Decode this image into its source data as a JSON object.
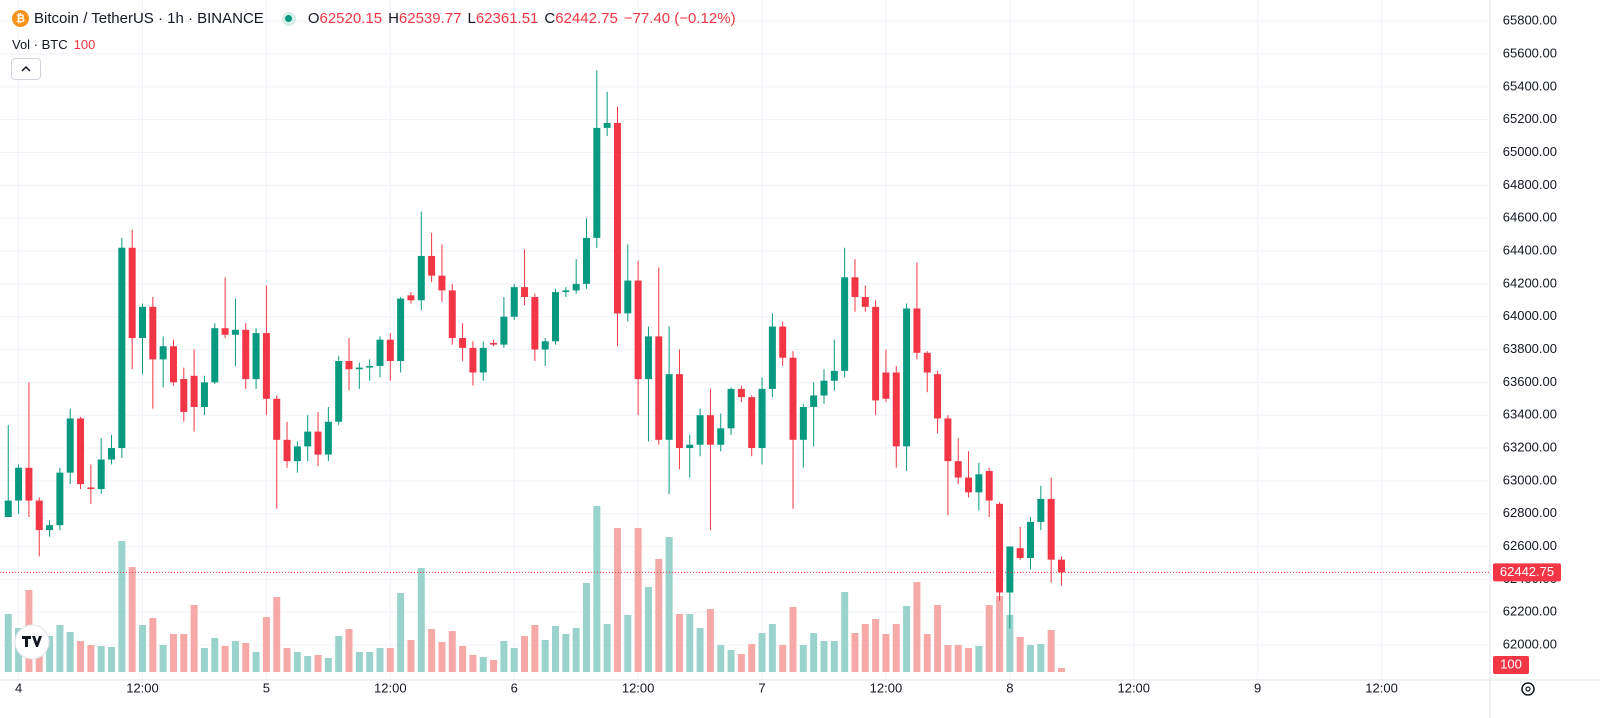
{
  "chart_data": {
    "type": "candlestick",
    "title": "Bitcoin / TetherUS · 1h · BINANCE",
    "ohlc_labels": [
      "O",
      "H",
      "L",
      "C"
    ],
    "change_text": "−77.40 (−0.12%)",
    "volume_title": "Vol · BTC",
    "up_color": "#089981",
    "down_color": "#f23645",
    "up_volume_color": "#9ad3cc",
    "down_volume_color": "#f7a9a8",
    "grid": true,
    "xlim": [
      -0.8,
      143.5
    ],
    "xticks": [
      {
        "value": 1,
        "label": "4"
      },
      {
        "value": 13,
        "label": "12:00"
      },
      {
        "value": 25,
        "label": "5"
      },
      {
        "value": 37,
        "label": "12:00"
      },
      {
        "value": 49,
        "label": "6"
      },
      {
        "value": 61,
        "label": "12:00"
      },
      {
        "value": 73,
        "label": "7"
      },
      {
        "value": 85,
        "label": "12:00"
      },
      {
        "value": 97,
        "label": "8"
      },
      {
        "value": 109,
        "label": "12:00"
      },
      {
        "value": 121,
        "label": "9"
      },
      {
        "value": 133,
        "label": "12:00"
      }
    ],
    "ylim": [
      61787,
      65929
    ],
    "yticks": [
      {
        "value": 62000,
        "label": "62000.00"
      },
      {
        "value": 62200,
        "label": "62200.00"
      },
      {
        "value": 62400,
        "label": "62400.00"
      },
      {
        "value": 62600,
        "label": "62600.00"
      },
      {
        "value": 62800,
        "label": "62800.00"
      },
      {
        "value": 63000,
        "label": "63000.00"
      },
      {
        "value": 63200,
        "label": "63200.00"
      },
      {
        "value": 63400,
        "label": "63400.00"
      },
      {
        "value": 63600,
        "label": "63600.00"
      },
      {
        "value": 63800,
        "label": "63800.00"
      },
      {
        "value": 64000,
        "label": "64000.00"
      },
      {
        "value": 64200,
        "label": "64200.00"
      },
      {
        "value": 64400,
        "label": "64400.00"
      },
      {
        "value": 64600,
        "label": "64600.00"
      },
      {
        "value": 64800,
        "label": "64800.00"
      },
      {
        "value": 65000,
        "label": "65000.00"
      },
      {
        "value": 65200,
        "label": "65200.00"
      },
      {
        "value": 65400,
        "label": "65400.00"
      },
      {
        "value": 65600,
        "label": "65600.00"
      },
      {
        "value": 65800,
        "label": "65800.00"
      }
    ],
    "volume_lim": [
      0,
      4300
    ],
    "candles": {
      "open": [
        62780,
        62880,
        63080,
        62880,
        62700,
        62730,
        63050,
        63380,
        62960,
        62950,
        63130,
        63200,
        64420,
        63870,
        64060,
        63740,
        63820,
        63620,
        63640,
        63450,
        63600,
        63930,
        63890,
        63920,
        63620,
        63900,
        63500,
        63250,
        63120,
        63210,
        63300,
        63160,
        63360,
        63730,
        63680,
        63690,
        63700,
        63860,
        63730,
        64130,
        64100,
        64370,
        64250,
        64160,
        63870,
        63810,
        63660,
        63840,
        63830,
        64000,
        64180,
        64120,
        63800,
        63850,
        64150,
        64160,
        64200,
        64480,
        65150,
        65180,
        64020,
        64220,
        63620,
        63880,
        63250,
        63650,
        63200,
        63220,
        63400,
        63220,
        63320,
        63560,
        63510,
        63200,
        63560,
        63940,
        63750,
        63250,
        63450,
        63520,
        63610,
        63670,
        64240,
        64120,
        64060,
        63660,
        63660,
        63210,
        64050,
        63780,
        63650,
        63380,
        63120,
        63020,
        62930,
        63060,
        62860,
        62320,
        62590,
        62530,
        62750,
        62890,
        62520.15
      ],
      "high": [
        63340,
        63100,
        63600,
        62900,
        62760,
        63080,
        63440,
        63390,
        63100,
        63260,
        63280,
        64480,
        64530,
        64080,
        64120,
        63880,
        63860,
        63690,
        63800,
        63640,
        63960,
        64240,
        64110,
        63960,
        63930,
        64190,
        63520,
        63360,
        63240,
        63400,
        63420,
        63450,
        63760,
        63870,
        63720,
        63740,
        63880,
        63900,
        64120,
        64150,
        64640,
        64510,
        64440,
        64200,
        63960,
        63850,
        63850,
        63860,
        64120,
        64200,
        64410,
        64140,
        63870,
        64170,
        64180,
        64350,
        64600,
        65500,
        65370,
        65280,
        64440,
        64340,
        63940,
        64300,
        63940,
        63800,
        63280,
        63440,
        63560,
        63410,
        63570,
        63580,
        63520,
        63630,
        64020,
        63970,
        63790,
        63470,
        63600,
        63680,
        63860,
        64420,
        64350,
        64190,
        64100,
        63800,
        63700,
        64080,
        64330,
        63790,
        63670,
        63400,
        63260,
        63180,
        63110,
        63080,
        62870,
        62600,
        62720,
        62780,
        62970,
        63020,
        62539.77
      ],
      "low": [
        62780,
        62800,
        62780,
        62540,
        62660,
        62700,
        62980,
        62950,
        62860,
        62920,
        63100,
        63140,
        63680,
        63650,
        63440,
        63570,
        63580,
        63360,
        63300,
        63400,
        63590,
        63870,
        63700,
        63560,
        63560,
        63400,
        62830,
        63080,
        63050,
        63120,
        63090,
        63120,
        63340,
        63550,
        63560,
        63610,
        63630,
        63610,
        63660,
        64080,
        64040,
        64210,
        64090,
        63830,
        63730,
        63580,
        63610,
        63820,
        63810,
        63980,
        64070,
        63730,
        63700,
        63830,
        64120,
        64140,
        64170,
        64420,
        65100,
        63820,
        63970,
        63400,
        63240,
        63220,
        62920,
        63070,
        63020,
        63150,
        62700,
        63180,
        63280,
        63480,
        63150,
        63100,
        63510,
        63700,
        62830,
        63080,
        63210,
        63470,
        63550,
        63630,
        64030,
        64030,
        63400,
        63480,
        63080,
        63060,
        63740,
        63540,
        63290,
        62790,
        62980,
        62900,
        62820,
        62780,
        62270,
        62100,
        62520,
        62460,
        62700,
        62380,
        62361.51
      ],
      "close": [
        62880,
        63080,
        62880,
        62700,
        62730,
        63050,
        63380,
        62980,
        62950,
        63130,
        63200,
        64420,
        63870,
        64060,
        63740,
        63820,
        63600,
        63420,
        63450,
        63600,
        63930,
        63890,
        63920,
        63620,
        63900,
        63500,
        63250,
        63120,
        63210,
        63300,
        63160,
        63360,
        63730,
        63680,
        63690,
        63700,
        63860,
        63730,
        64110,
        64100,
        64370,
        64250,
        64160,
        63870,
        63810,
        63660,
        63810,
        63830,
        64000,
        64180,
        64120,
        63800,
        63850,
        64150,
        64160,
        64200,
        64480,
        65150,
        65180,
        64020,
        64220,
        63620,
        63880,
        63250,
        63650,
        63200,
        63220,
        63400,
        63220,
        63320,
        63560,
        63510,
        63200,
        63560,
        63940,
        63750,
        63250,
        63450,
        63520,
        63610,
        63670,
        64240,
        64120,
        64060,
        63490,
        63500,
        63210,
        64050,
        63780,
        63660,
        63380,
        63120,
        63020,
        62930,
        63040,
        62880,
        62320,
        62600,
        62530,
        62750,
        62890,
        62520,
        62442.75
      ]
    },
    "volume": [
      1450,
      1100,
      2050,
      550,
      900,
      1175,
      1000,
      775,
      675,
      650,
      625,
      3275,
      2625,
      1175,
      1350,
      675,
      950,
      950,
      1675,
      600,
      850,
      650,
      775,
      725,
      500,
      1375,
      1875,
      600,
      500,
      400,
      425,
      350,
      900,
      1075,
      500,
      500,
      600,
      600,
      1975,
      800,
      2600,
      1075,
      750,
      1025,
      650,
      425,
      375,
      300,
      775,
      600,
      900,
      1175,
      800,
      1150,
      950,
      1100,
      2225,
      4150,
      1200,
      3600,
      1425,
      3600,
      2125,
      2825,
      3375,
      1450,
      1450,
      1100,
      1575,
      675,
      550,
      450,
      700,
      975,
      1200,
      675,
      1625,
      675,
      975,
      775,
      775,
      2000,
      975,
      1200,
      1325,
      950,
      1200,
      1650,
      2250,
      950,
      1675,
      675,
      675,
      600,
      650,
      1675,
      1900,
      1425,
      875,
      675,
      700,
      1050,
      100
    ]
  }
}
